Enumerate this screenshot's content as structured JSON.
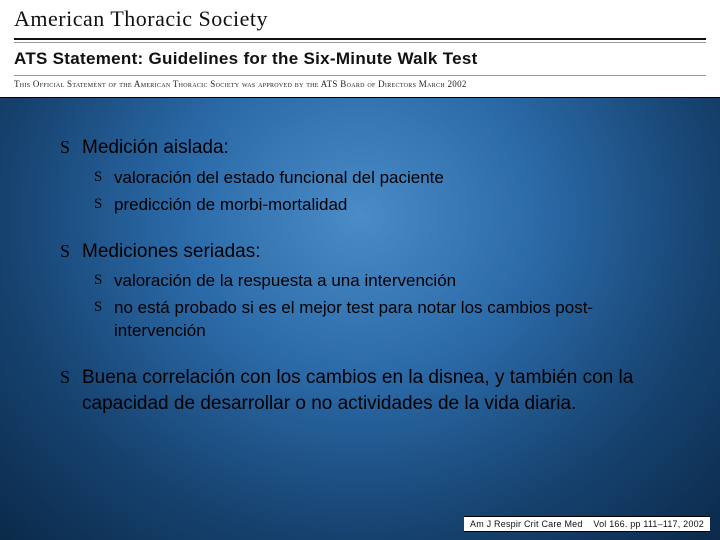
{
  "header": {
    "org": "American Thoracic Society",
    "statement_title": "ATS Statement: Guidelines for the Six-Minute Walk Test",
    "approval_line": "This Official Statement of the American Thoracic Society was approved by the ATS Board of Directors March 2002"
  },
  "content": {
    "sections": [
      {
        "title": "Medición aislada:",
        "items": [
          "valoración del estado funcional del paciente",
          "predicción de morbi-mortalidad"
        ]
      },
      {
        "title": "Mediciones seriadas:",
        "items": [
          "valoración de la respuesta a una intervención",
          "no está probado si es el mejor test para notar los cambios post-intervención"
        ]
      },
      {
        "title": "Buena correlación con los cambios en la disnea, y también con la capacidad de desarrollar o no actividades de la vida diaria.",
        "items": []
      }
    ]
  },
  "citation": {
    "journal": "Am J Respir Crit Care Med",
    "details": "Vol 166. pp 111–117, 2002"
  },
  "style": {
    "bullet_glyph": "S",
    "body_fontsize_lvl1": 19,
    "body_fontsize_lvl2": 17,
    "text_color": "#000000",
    "background_gradient": [
      "#4a8cc7",
      "#2b6aa8",
      "#16426f",
      "#0b2a4a"
    ],
    "header_bg": "#ffffff"
  }
}
